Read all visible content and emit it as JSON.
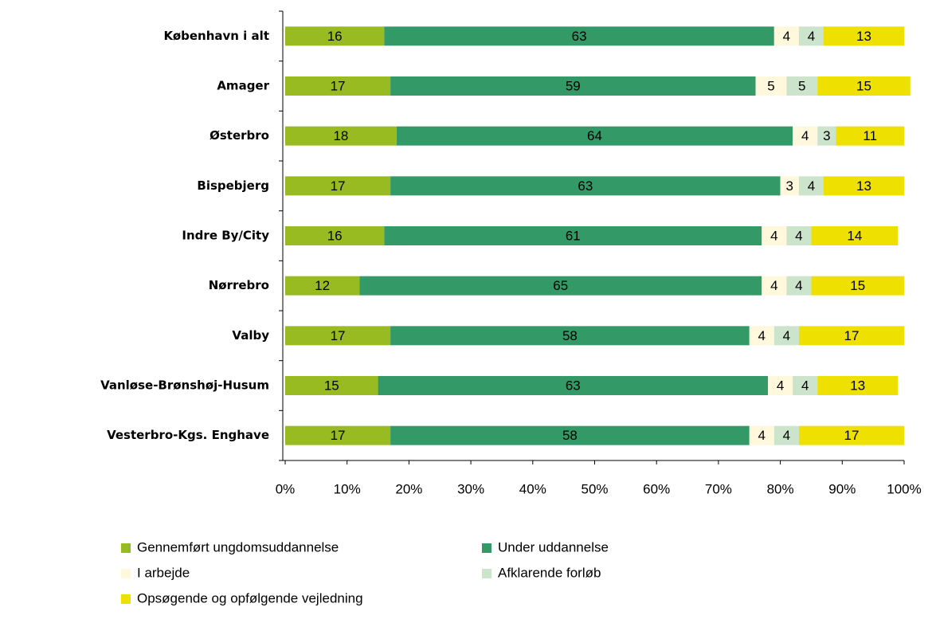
{
  "chart_data": {
    "type": "bar",
    "orientation": "horizontal",
    "stacked": true,
    "categories": [
      "København i alt",
      "Amager",
      "Østerbro",
      "Bispebjerg",
      "Indre By/City",
      "Nørrebro",
      "Valby",
      "Vanløse-Brønshøj-Husum",
      "Vesterbro-Kgs. Enghave"
    ],
    "series": [
      {
        "name": "Gennemført ungdomsuddannelse",
        "color": "#99bb22",
        "values": [
          16,
          17,
          18,
          17,
          16,
          12,
          17,
          15,
          17
        ]
      },
      {
        "name": "Under uddannelse",
        "color": "#339966",
        "values": [
          63,
          59,
          64,
          63,
          61,
          65,
          58,
          63,
          58
        ]
      },
      {
        "name": "I arbejde",
        "color": "#fff8dc",
        "values": [
          4,
          5,
          4,
          3,
          4,
          4,
          4,
          4,
          4
        ]
      },
      {
        "name": "Afklarende forløb",
        "color": "#cce3cc",
        "values": [
          4,
          5,
          3,
          4,
          4,
          4,
          4,
          4,
          4
        ]
      },
      {
        "name": "Opsøgende og opfølgende vejledning",
        "color": "#eee000",
        "values": [
          13,
          15,
          11,
          13,
          14,
          15,
          17,
          13,
          17
        ]
      }
    ],
    "xlim": [
      0,
      100
    ],
    "xticks": [
      {
        "value": 0,
        "label": "0%"
      },
      {
        "value": 10,
        "label": "10%"
      },
      {
        "value": 20,
        "label": "20%"
      },
      {
        "value": 30,
        "label": "30%"
      },
      {
        "value": 40,
        "label": "40%"
      },
      {
        "value": 50,
        "label": "50%"
      },
      {
        "value": 60,
        "label": "60%"
      },
      {
        "value": 70,
        "label": "70%"
      },
      {
        "value": 80,
        "label": "80%"
      },
      {
        "value": 90,
        "label": "90%"
      },
      {
        "value": 100,
        "label": "100%"
      }
    ],
    "grid": false
  }
}
